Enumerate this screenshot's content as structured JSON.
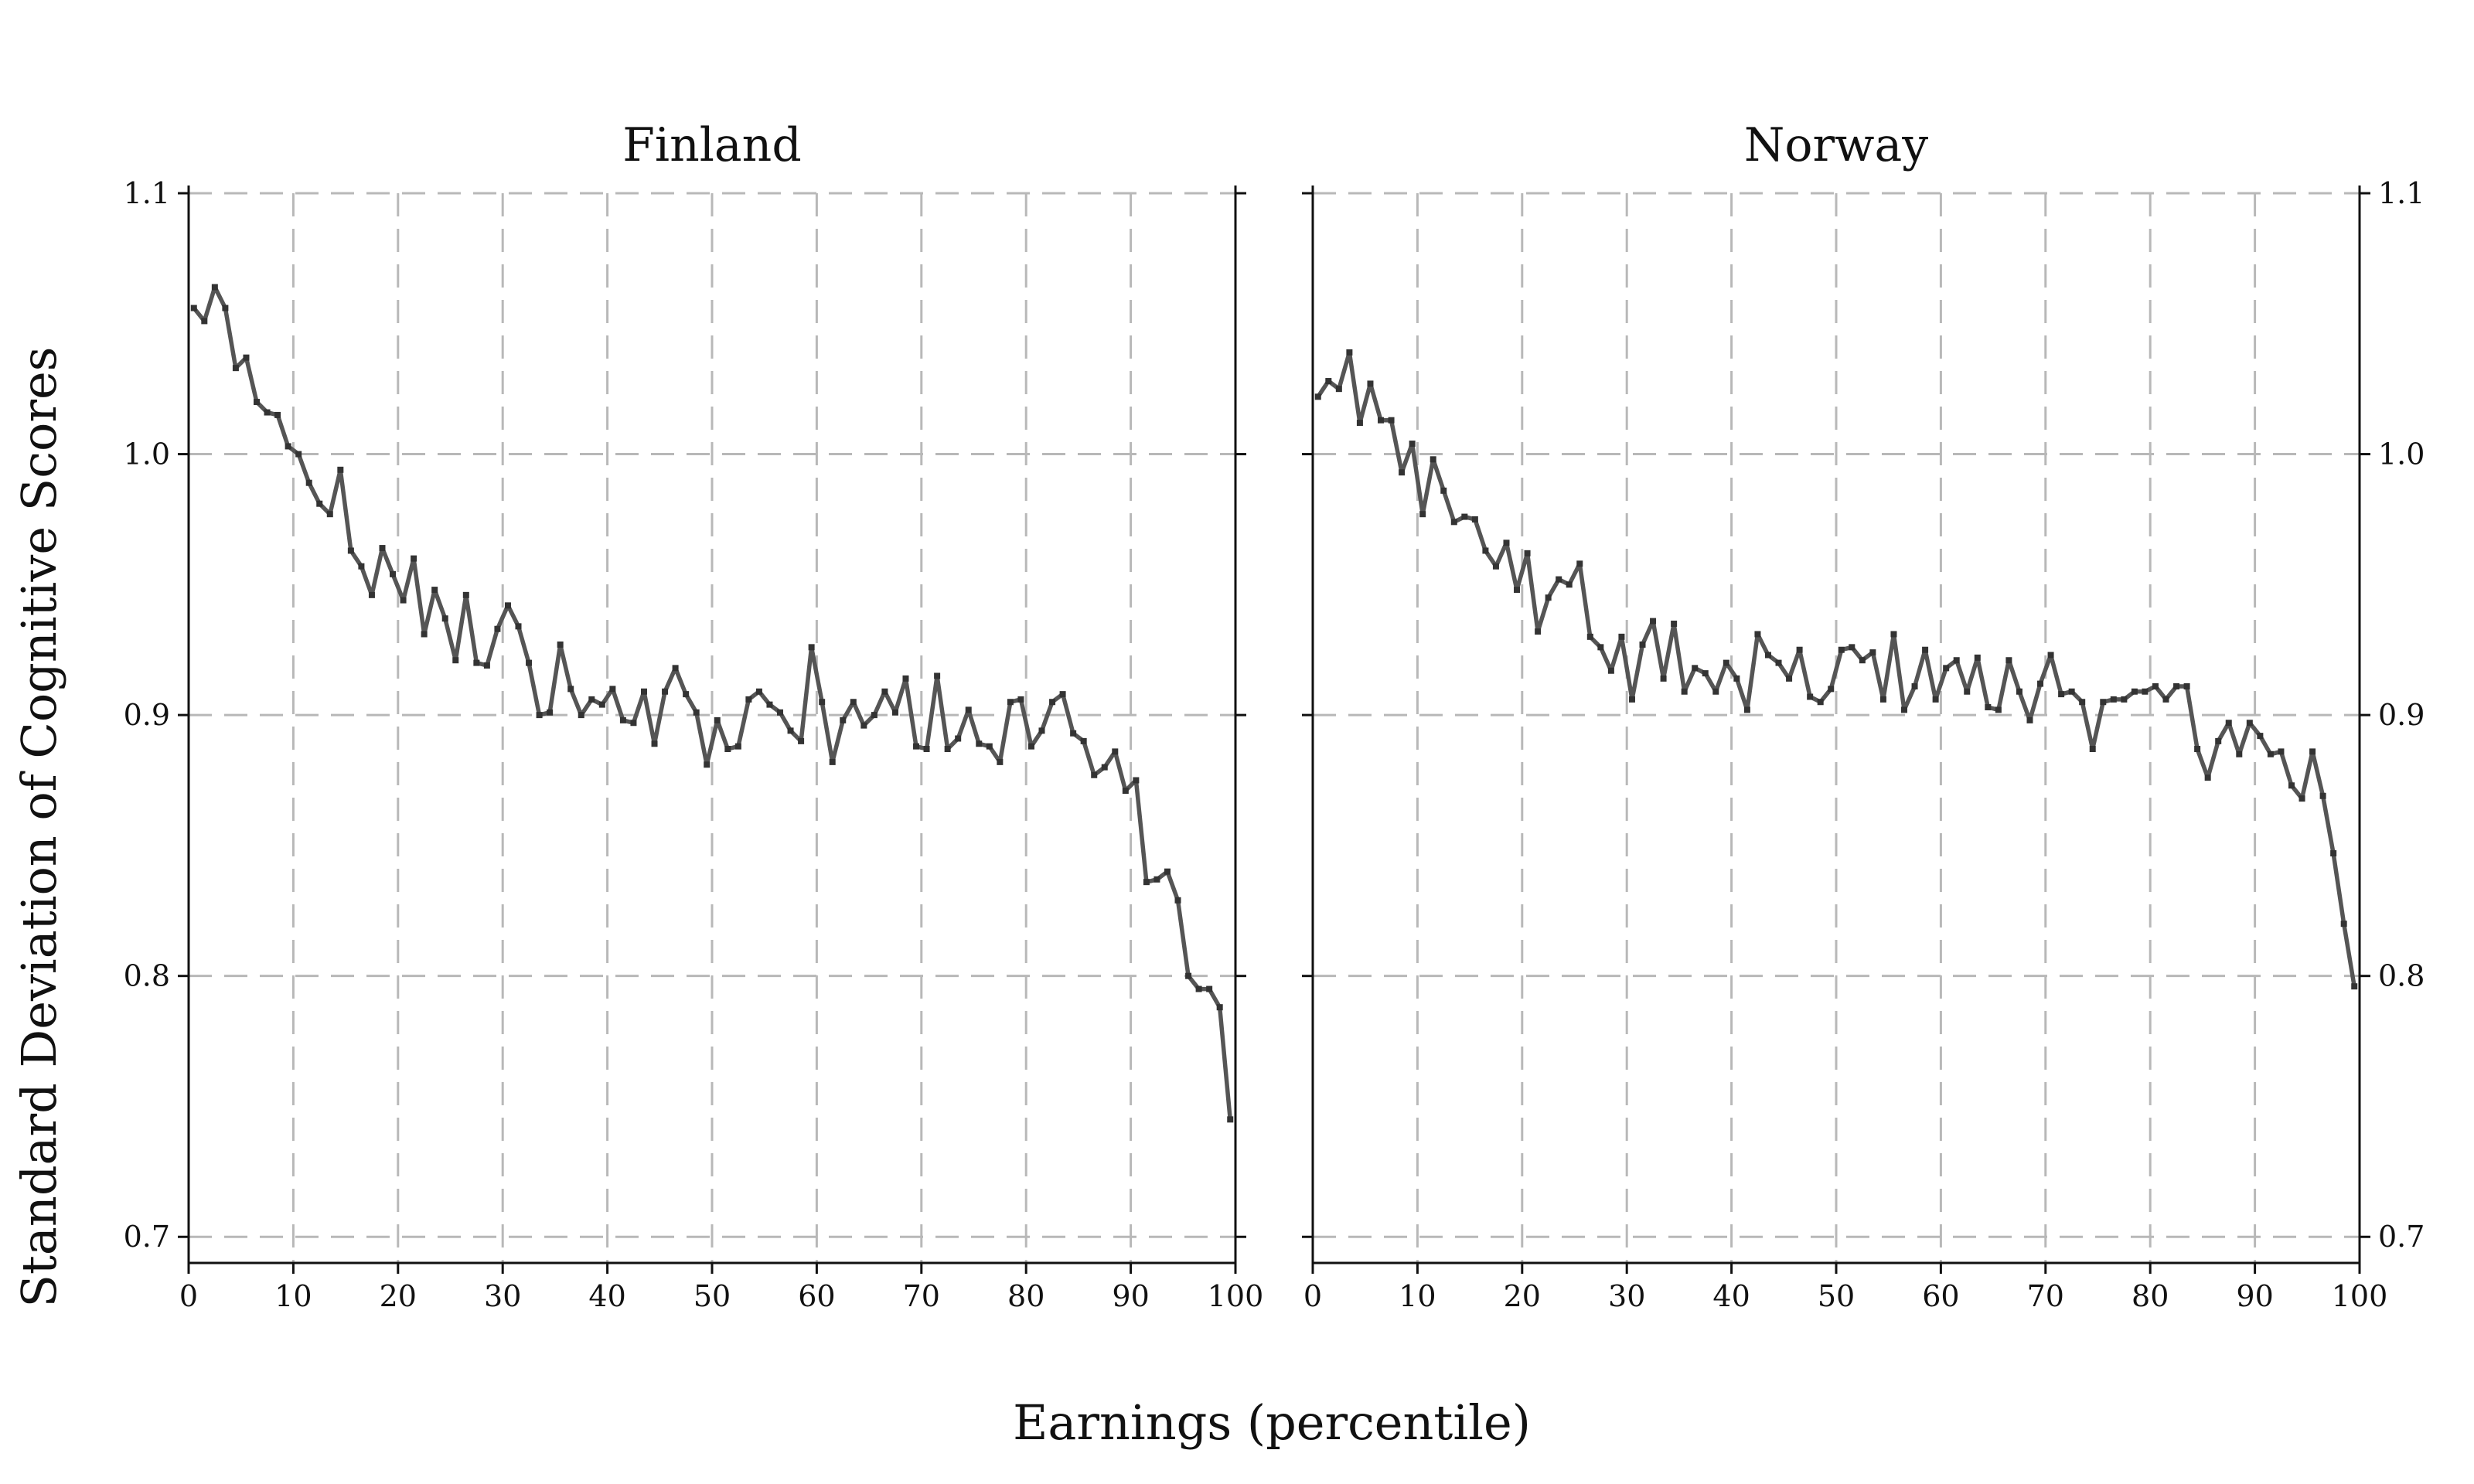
{
  "colors": {
    "series": "#555555",
    "marker": "#333333",
    "grid": "#b8b8b8",
    "axis": "#111111"
  },
  "chart_data": [
    {
      "type": "line",
      "title": "Finland",
      "xlabel": "Earnings (percentile)",
      "ylabel": "Standard Deviation of Cognitive Scores",
      "xlim": [
        0,
        100
      ],
      "ylim": [
        0.69,
        1.1
      ],
      "xticks": [
        0,
        10,
        20,
        30,
        40,
        50,
        60,
        70,
        80,
        90,
        100
      ],
      "yticks": [
        0.7,
        0.8,
        0.9,
        1.0,
        1.1
      ],
      "ytick_labels": [
        "0.7",
        "0.8",
        "0.9",
        "1.0",
        "1.1"
      ],
      "ytick_side": "left",
      "grid": true,
      "series": [
        {
          "x": [
            0.5,
            1.5,
            2.5,
            3.5,
            4.5,
            5.5,
            6.5,
            7.5,
            8.5,
            9.5,
            10.5,
            11.5,
            12.5,
            13.5,
            14.5,
            15.5,
            16.5,
            17.5,
            18.5,
            19.5,
            20.5,
            21.5,
            22.5,
            23.5,
            24.5,
            25.5,
            26.5,
            27.5,
            28.5,
            29.5,
            30.5,
            31.5,
            32.5,
            33.5,
            34.5,
            35.5,
            36.5,
            37.5,
            38.5,
            39.5,
            40.5,
            41.5,
            42.5,
            43.5,
            44.5,
            45.5,
            46.5,
            47.5,
            48.5,
            49.5,
            50.5,
            51.5,
            52.5,
            53.5,
            54.5,
            55.5,
            56.5,
            57.5,
            58.5,
            59.5,
            60.5,
            61.5,
            62.5,
            63.5,
            64.5,
            65.5,
            66.5,
            67.5,
            68.5,
            69.5,
            70.5,
            71.5,
            72.5,
            73.5,
            74.5,
            75.5,
            76.5,
            77.5,
            78.5,
            79.5,
            80.5,
            81.5,
            82.5,
            83.5,
            84.5,
            85.5,
            86.5,
            87.5,
            88.5,
            89.5,
            90.5,
            91.5,
            92.5,
            93.5,
            94.5,
            95.5,
            96.5,
            97.5,
            98.5,
            99.5
          ],
          "y": [
            1.056,
            1.051,
            1.064,
            1.056,
            1.033,
            1.037,
            1.02,
            1.016,
            1.015,
            1.003,
            1.0,
            0.989,
            0.981,
            0.977,
            0.994,
            0.963,
            0.957,
            0.946,
            0.964,
            0.954,
            0.944,
            0.96,
            0.931,
            0.948,
            0.937,
            0.921,
            0.946,
            0.92,
            0.919,
            0.933,
            0.942,
            0.934,
            0.92,
            0.9,
            0.901,
            0.927,
            0.91,
            0.9,
            0.906,
            0.904,
            0.91,
            0.898,
            0.897,
            0.909,
            0.889,
            0.909,
            0.918,
            0.908,
            0.901,
            0.881,
            0.898,
            0.887,
            0.888,
            0.906,
            0.909,
            0.904,
            0.901,
            0.894,
            0.89,
            0.926,
            0.905,
            0.882,
            0.898,
            0.905,
            0.896,
            0.9,
            0.909,
            0.901,
            0.914,
            0.888,
            0.887,
            0.915,
            0.887,
            0.891,
            0.902,
            0.889,
            0.888,
            0.882,
            0.905,
            0.906,
            0.888,
            0.894,
            0.905,
            0.908,
            0.893,
            0.89,
            0.877,
            0.88,
            0.886,
            0.871,
            0.875,
            0.836,
            0.837,
            0.84,
            0.829,
            0.8,
            0.795,
            0.795,
            0.788,
            0.745
          ]
        }
      ]
    },
    {
      "type": "line",
      "title": "Norway",
      "xlabel": "Earnings (percentile)",
      "ylabel": "",
      "xlim": [
        0,
        100
      ],
      "ylim": [
        0.69,
        1.1
      ],
      "xticks": [
        0,
        10,
        20,
        30,
        40,
        50,
        60,
        70,
        80,
        90,
        100
      ],
      "yticks": [
        0.7,
        0.8,
        0.9,
        1.0,
        1.1
      ],
      "ytick_labels": [
        "0.7",
        "0.8",
        "0.9",
        "1.0",
        "1.1"
      ],
      "ytick_side": "right",
      "grid": true,
      "series": [
        {
          "x": [
            0.5,
            1.5,
            2.5,
            3.5,
            4.5,
            5.5,
            6.5,
            7.5,
            8.5,
            9.5,
            10.5,
            11.5,
            12.5,
            13.5,
            14.5,
            15.5,
            16.5,
            17.5,
            18.5,
            19.5,
            20.5,
            21.5,
            22.5,
            23.5,
            24.5,
            25.5,
            26.5,
            27.5,
            28.5,
            29.5,
            30.5,
            31.5,
            32.5,
            33.5,
            34.5,
            35.5,
            36.5,
            37.5,
            38.5,
            39.5,
            40.5,
            41.5,
            42.5,
            43.5,
            44.5,
            45.5,
            46.5,
            47.5,
            48.5,
            49.5,
            50.5,
            51.5,
            52.5,
            53.5,
            54.5,
            55.5,
            56.5,
            57.5,
            58.5,
            59.5,
            60.5,
            61.5,
            62.5,
            63.5,
            64.5,
            65.5,
            66.5,
            67.5,
            68.5,
            69.5,
            70.5,
            71.5,
            72.5,
            73.5,
            74.5,
            75.5,
            76.5,
            77.5,
            78.5,
            79.5,
            80.5,
            81.5,
            82.5,
            83.5,
            84.5,
            85.5,
            86.5,
            87.5,
            88.5,
            89.5,
            90.5,
            91.5,
            92.5,
            93.5,
            94.5,
            95.5,
            96.5,
            97.5,
            98.5,
            99.5
          ],
          "y": [
            1.022,
            1.028,
            1.025,
            1.039,
            1.012,
            1.027,
            1.013,
            1.013,
            0.993,
            1.004,
            0.977,
            0.998,
            0.986,
            0.974,
            0.976,
            0.975,
            0.963,
            0.957,
            0.966,
            0.948,
            0.962,
            0.932,
            0.945,
            0.952,
            0.95,
            0.958,
            0.93,
            0.926,
            0.917,
            0.93,
            0.906,
            0.927,
            0.936,
            0.914,
            0.935,
            0.909,
            0.918,
            0.916,
            0.909,
            0.92,
            0.914,
            0.902,
            0.931,
            0.923,
            0.92,
            0.914,
            0.925,
            0.907,
            0.905,
            0.91,
            0.925,
            0.926,
            0.921,
            0.924,
            0.906,
            0.931,
            0.902,
            0.911,
            0.925,
            0.906,
            0.918,
            0.921,
            0.909,
            0.922,
            0.903,
            0.902,
            0.921,
            0.909,
            0.898,
            0.912,
            0.923,
            0.908,
            0.909,
            0.905,
            0.887,
            0.905,
            0.906,
            0.906,
            0.909,
            0.909,
            0.911,
            0.906,
            0.911,
            0.911,
            0.887,
            0.876,
            0.89,
            0.897,
            0.885,
            0.897,
            0.892,
            0.885,
            0.886,
            0.873,
            0.868,
            0.886,
            0.869,
            0.847,
            0.82,
            0.796
          ]
        }
      ]
    }
  ],
  "shared_xlabel": "Earnings (percentile)",
  "shared_ylabel": "Standard Deviation of Cognitive Scores"
}
